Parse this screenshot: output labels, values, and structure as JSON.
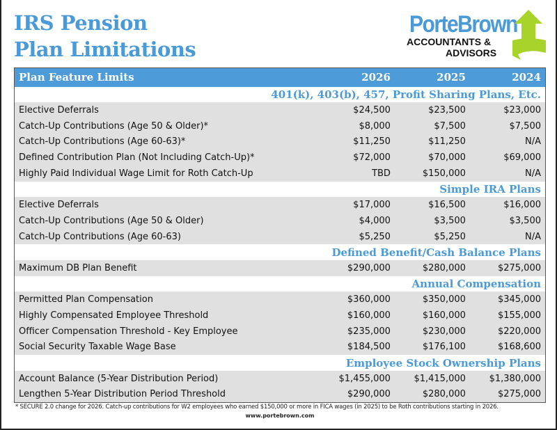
{
  "title": {
    "line1": "IRS Pension",
    "line2": "Plan Limitations"
  },
  "logo": {
    "brand": "PorteBrown",
    "sub1": "ACCOUNTANTS &",
    "sub2": "ADVISORS",
    "accent": "#a8d32a"
  },
  "table": {
    "headers": [
      "Plan Feature Limits",
      "2026",
      "2025",
      "2024"
    ],
    "sections": [
      {
        "title": "401(k), 403(b), 457, Profit Sharing Plans, Etc.",
        "rows": [
          [
            "Elective Deferrals",
            "$24,500",
            "$23,500",
            "$23,000"
          ],
          [
            "Catch-Up Contributions (Age 50 & Older)*",
            "$8,000",
            "$7,500",
            "$7,500"
          ],
          [
            "Catch-Up Contributions (Age 60-63)*",
            "$11,250",
            "$11,250",
            "N/A"
          ],
          [
            "Defined Contribution Plan (Not Including Catch-Up)*",
            "$72,000",
            "$70,000",
            "$69,000"
          ],
          [
            "Highly Paid Individual Wage Limit for Roth Catch-Up",
            "TBD",
            "$150,000",
            "N/A"
          ]
        ]
      },
      {
        "title": "Simple IRA Plans",
        "rows": [
          [
            "Elective Deferrals",
            "$17,000",
            "$16,500",
            "$16,000"
          ],
          [
            "Catch-Up Contributions (Age 50 & Older)",
            "$4,000",
            "$3,500",
            "$3,500"
          ],
          [
            "Catch-Up Contributions (Age 60-63)",
            "$5,250",
            "$5,250",
            "N/A"
          ]
        ]
      },
      {
        "title": "Defined Benefit/Cash Balance Plans",
        "rows": [
          [
            "Maximum DB Plan Benefit",
            "$290,000",
            "$280,000",
            "$275,000"
          ]
        ]
      },
      {
        "title": "Annual Compensation",
        "rows": [
          [
            "Permitted Plan Compensation",
            "$360,000",
            "$350,000",
            "$345,000"
          ],
          [
            "Highly Compensated Employee Threshold",
            "$160,000",
            "$160,000",
            "$155,000"
          ],
          [
            "Officer Compensation Threshold - Key Employee",
            "$235,000",
            "$230,000",
            "$220,000"
          ],
          [
            "Social Security Taxable Wage Base",
            "$184,500",
            "$176,100",
            "$168,600"
          ]
        ]
      },
      {
        "title": "Employee Stock Ownership Plans",
        "rows": [
          [
            "Account Balance (5-Year Distribution Period)",
            "$1,455,000",
            "$1,415,000",
            "$1,380,000"
          ],
          [
            "Lengthen 5-Year Distribution Period Threshold",
            "$290,000",
            "$280,000",
            "$275,000"
          ]
        ]
      }
    ]
  },
  "footnote": "* SECURE 2.0 change for 2026.  Catch-up contributions for W2 employees who earned $150,000 or more in FICA wages (in 2025) to be Roth contributions starting in 2026.",
  "website": "www.portebrown.com"
}
